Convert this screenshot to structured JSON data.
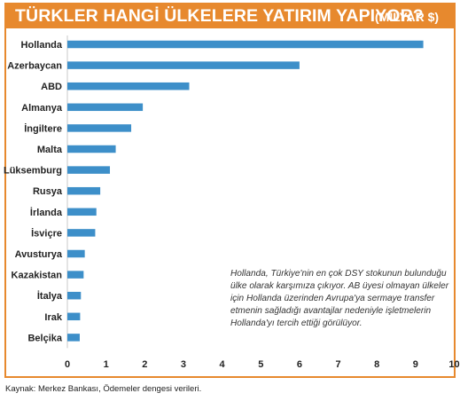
{
  "title": "TÜRKLER HANGİ ÜLKELERE YATIRIM YAPIYOR?",
  "title_unit": "(MİLYAR $)",
  "note": "Hollanda, Türkiye'nin en çok DSY stokunun bulunduğu ülke olarak karşımıza çıkıyor. AB üyesi olmayan ülkeler için Hollanda üzerinden Avrupa'ya sermaye transfer etmenin sağladığı avantajlar nedeniyle işletmelerin Hollanda'yı tercih ettiği görülüyor.",
  "source": "Kaynak: Merkez Bankası, Ödemeler dengesi verileri.",
  "colors": {
    "accent": "#e7892e",
    "bar": "#3d8fc9"
  },
  "chart_data": {
    "type": "bar",
    "orientation": "horizontal",
    "categories": [
      "Hollanda",
      "Azerbaycan",
      "ABD",
      "Almanya",
      "İngiltere",
      "Malta",
      "Lüksemburg",
      "Rusya",
      "İrlanda",
      "İsviçre",
      "Avusturya",
      "Kazakistan",
      "İtalya",
      "Irak",
      "Belçika"
    ],
    "values": [
      9.2,
      6.0,
      3.15,
      1.95,
      1.65,
      1.25,
      1.1,
      0.85,
      0.75,
      0.72,
      0.45,
      0.42,
      0.35,
      0.33,
      0.32
    ],
    "xlim": [
      0,
      10
    ],
    "xticks": [
      0,
      1,
      2,
      3,
      4,
      5,
      6,
      7,
      8,
      9,
      10
    ],
    "grid": false
  }
}
